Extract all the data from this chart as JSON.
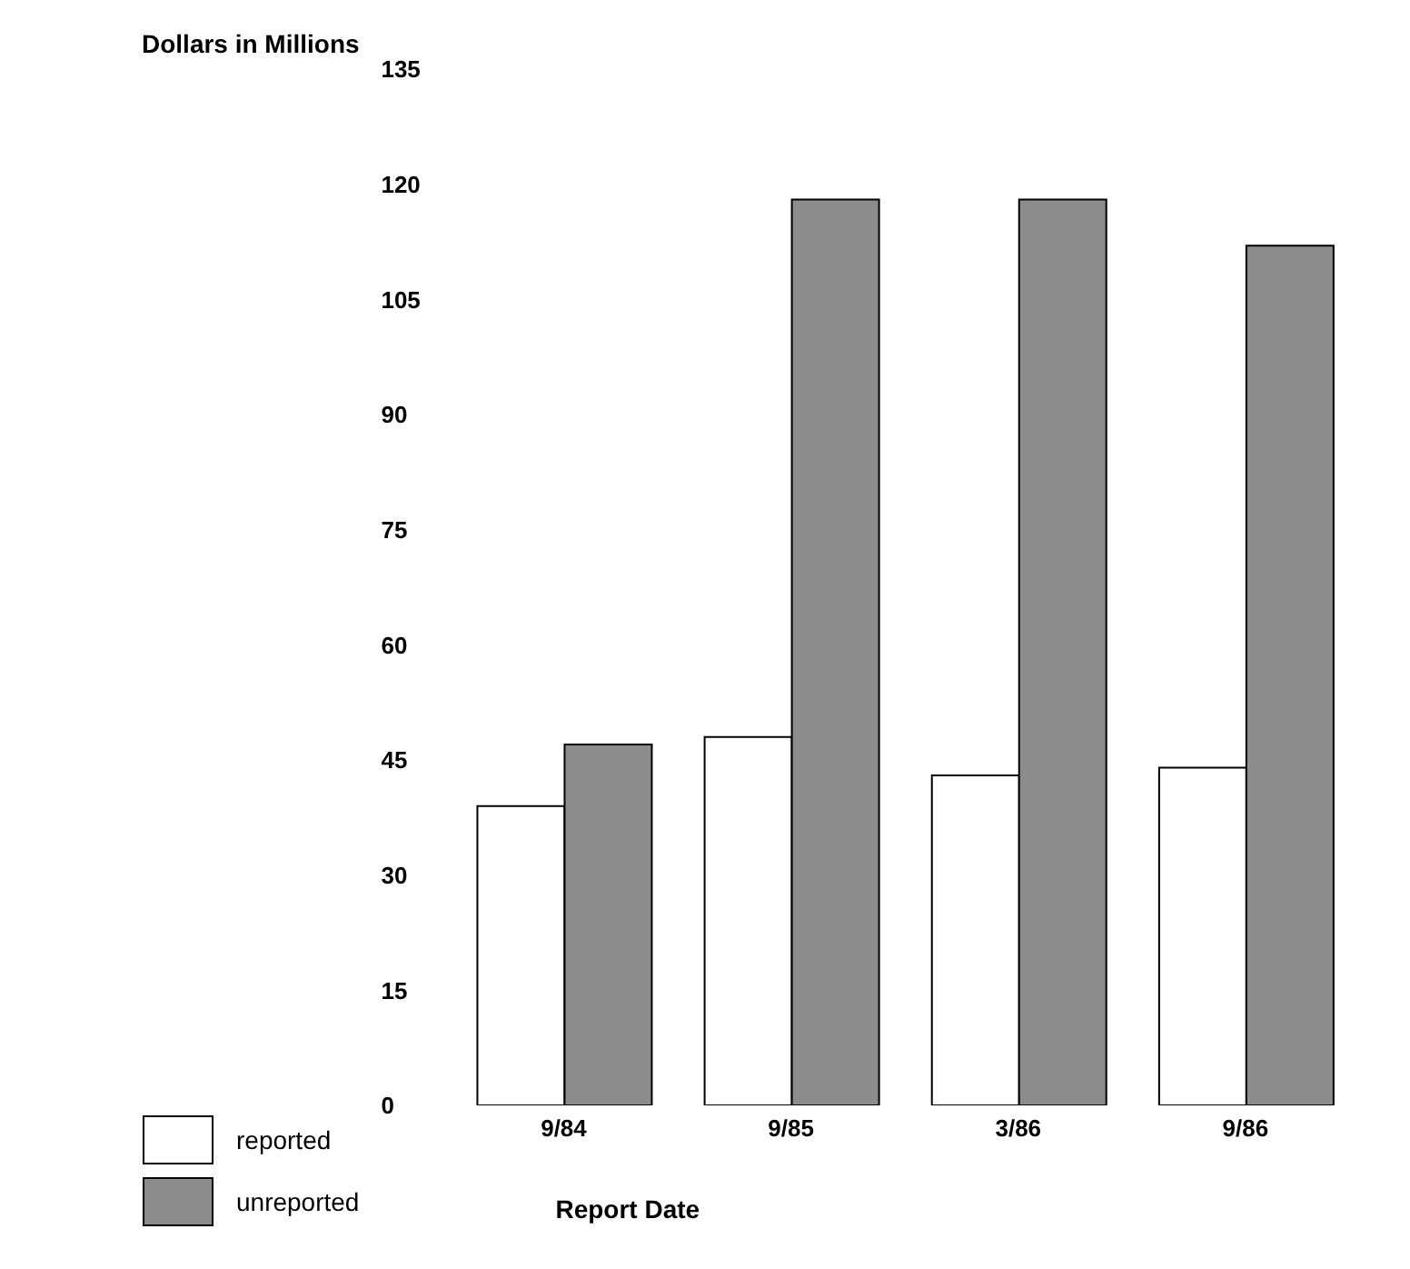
{
  "chart_data": {
    "type": "bar",
    "ylabel": "Dollars in Millions",
    "xlabel": "Report Date",
    "categories": [
      "9/84",
      "9/85",
      "3/86",
      "9/86"
    ],
    "series": [
      {
        "name": "reported",
        "color": "#ffffff",
        "values": [
          39,
          48,
          43,
          44
        ]
      },
      {
        "name": "unreported",
        "color": "#8c8c8c",
        "values": [
          47,
          118,
          118,
          112
        ]
      }
    ],
    "ylim": [
      0,
      135
    ],
    "yticks": [
      0,
      15,
      30,
      45,
      60,
      75,
      90,
      105,
      120,
      135
    ],
    "grid": false,
    "legend": "bottom left"
  }
}
